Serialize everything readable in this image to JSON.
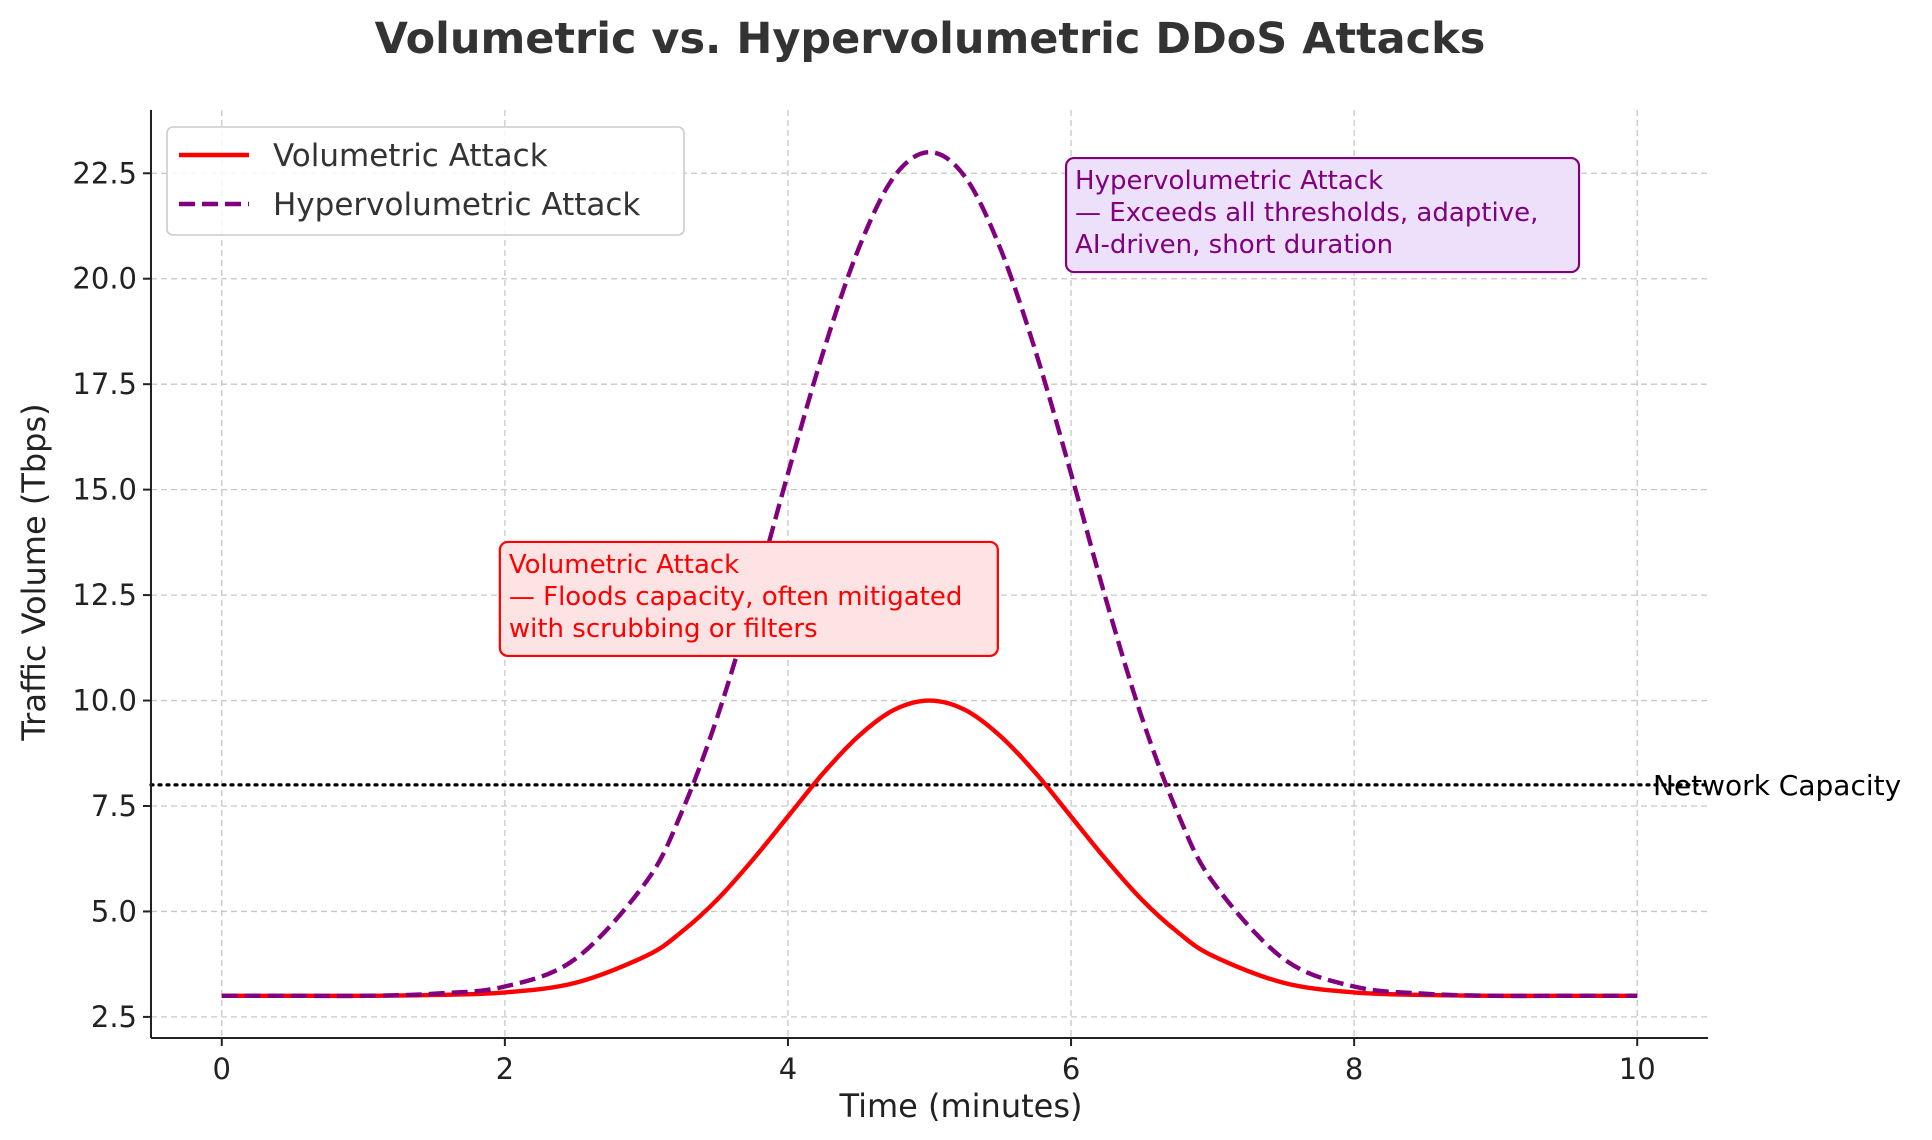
{
  "chart_data": {
    "type": "line",
    "title": "Volumetric vs. Hypervolumetric DDoS Attacks",
    "xlabel": "Time (minutes)",
    "ylabel": "Traffic Volume (Tbps)",
    "xlim": [
      -0.5,
      10.5
    ],
    "ylim": [
      2.0,
      24.0
    ],
    "x_ticks": [
      0,
      2,
      4,
      6,
      8,
      10
    ],
    "x_tick_labels": [
      "0",
      "2",
      "4",
      "6",
      "8",
      "10"
    ],
    "y_ticks": [
      2.5,
      5.0,
      7.5,
      10.0,
      12.5,
      15.0,
      17.5,
      20.0,
      22.5
    ],
    "y_tick_labels": [
      "2.5",
      "5.0",
      "7.5",
      "10.0",
      "12.5",
      "15.0",
      "17.5",
      "20.0",
      "22.5"
    ],
    "grid": true,
    "legend_position": "top-left",
    "x": [
      0,
      0.5,
      1.0,
      1.5,
      2.0,
      2.5,
      3.0,
      3.25,
      3.5,
      3.75,
      4.0,
      4.25,
      4.5,
      4.75,
      5.0,
      5.25,
      5.5,
      5.75,
      6.0,
      6.25,
      6.5,
      6.75,
      7.0,
      7.5,
      8.0,
      8.5,
      9.0,
      9.5,
      10.0
    ],
    "series": [
      {
        "name": "Volumetric Attack",
        "color": "#ff0000",
        "style": "solid",
        "values": [
          3.0,
          3.0,
          3.0,
          3.02,
          3.08,
          3.31,
          3.95,
          4.52,
          5.28,
          6.22,
          7.25,
          8.28,
          9.16,
          9.78,
          10.0,
          9.78,
          9.16,
          8.28,
          7.25,
          6.22,
          5.28,
          4.52,
          3.95,
          3.31,
          3.08,
          3.02,
          3.0,
          3.0,
          3.0
        ]
      },
      {
        "name": "Hypervolumetric Attack",
        "color": "#800080",
        "style": "dashed",
        "values": [
          3.0,
          3.0,
          3.0,
          3.05,
          3.22,
          3.88,
          5.71,
          7.36,
          9.6,
          12.36,
          15.38,
          18.27,
          20.72,
          22.42,
          23.0,
          22.42,
          20.72,
          18.27,
          15.38,
          12.36,
          9.6,
          7.36,
          5.71,
          3.88,
          3.22,
          3.05,
          3.0,
          3.0,
          3.0
        ]
      }
    ],
    "reference_lines": [
      {
        "label": "Network Capacity",
        "y": 8.0,
        "style": "dotted",
        "color": "#000000"
      }
    ],
    "annotations": [
      {
        "lines": [
          "Hypervolumetric Attack",
          "— Exceeds all thresholds, adaptive,",
          "AI-driven, short duration"
        ],
        "color": "#800080",
        "background": "#ede0fa",
        "anchor_x": 6.0,
        "anchor_y": 20.3
      },
      {
        "lines": [
          "Volumetric Attack",
          "— Floods capacity, often mitigated",
          "with scrubbing or filters"
        ],
        "color": "#ff0000",
        "background": "#fde3e3",
        "anchor_x": 2.0,
        "anchor_y": 11.2
      }
    ]
  }
}
